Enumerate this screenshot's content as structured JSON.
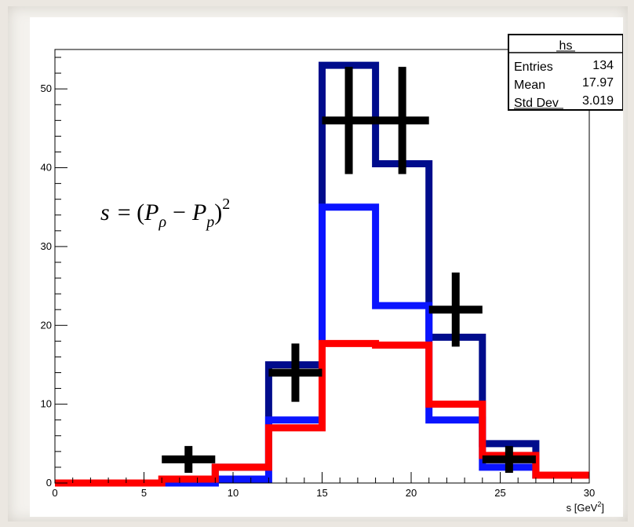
{
  "chart_data": {
    "type": "histogram",
    "xlabel": "s [GeV",
    "xlabel_sup": "2",
    "xlabel_close": "]",
    "xlim": [
      0,
      30
    ],
    "ylim": [
      0,
      55
    ],
    "x_ticks": [
      0,
      5,
      10,
      15,
      20,
      25,
      30
    ],
    "y_ticks": [
      0,
      10,
      20,
      30,
      40,
      50
    ],
    "bin_edges": [
      0,
      3,
      6,
      9,
      12,
      15,
      18,
      21,
      24,
      27,
      30
    ],
    "series": [
      {
        "color": "#000c8c",
        "style": "step",
        "values": [
          0,
          0,
          0,
          2,
          15,
          53,
          40.5,
          18.5,
          5,
          1
        ]
      },
      {
        "color": "#0a14ff",
        "style": "step",
        "values": [
          0,
          0,
          0,
          0.5,
          8,
          35,
          22.5,
          8,
          2,
          1
        ]
      },
      {
        "color": "#ff0000",
        "style": "step",
        "values": [
          0,
          0,
          0.5,
          2,
          7,
          17.7,
          17.5,
          10,
          3.5,
          1
        ]
      },
      {
        "color": "#000000",
        "style": "errorbars",
        "points": [
          {
            "x": 7.5,
            "y": 3,
            "err": 1.7
          },
          {
            "x": 13.5,
            "y": 14,
            "err": 3.7
          },
          {
            "x": 16.5,
            "y": 46,
            "err": 6.8
          },
          {
            "x": 19.5,
            "y": 46,
            "err": 6.8
          },
          {
            "x": 22.5,
            "y": 22,
            "err": 4.7
          },
          {
            "x": 25.5,
            "y": 3,
            "err": 1.7
          }
        ]
      }
    ],
    "annotation": {
      "s": "s",
      "eq": "= (",
      "P1": "P",
      "sub1": "ρ",
      "minus": "−",
      "P2": "P",
      "sub2": "p",
      "close": ")",
      "sup": "2"
    },
    "stats_box": {
      "title": "hs",
      "rows": [
        {
          "label": "Entries",
          "value": "134"
        },
        {
          "label": "Mean",
          "value": "17.97"
        },
        {
          "label": "Std Dev",
          "value": "3.019"
        }
      ]
    }
  }
}
